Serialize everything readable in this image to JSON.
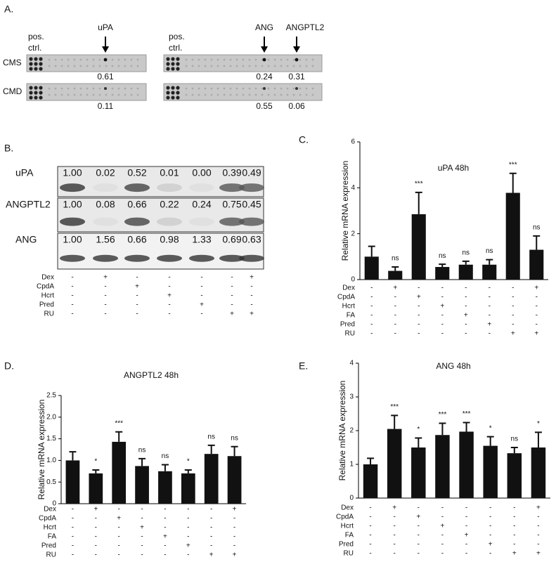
{
  "panel_a": {
    "label": "A.",
    "rows": [
      "CMS",
      "CMD"
    ],
    "controls": [
      [
        "pos.",
        "ctrl."
      ],
      [
        "pos.",
        "ctrl."
      ]
    ],
    "markers": [
      {
        "label": "uPA",
        "values": [
          "0.61",
          "0.11"
        ]
      },
      {
        "label": "ANG",
        "values": [
          "0.24",
          "0.55"
        ]
      },
      {
        "label": "ANGPTL2",
        "values": [
          "0.31",
          "0.06"
        ]
      }
    ]
  },
  "panel_b": {
    "label": "B.",
    "blots": [
      {
        "label": "uPA",
        "values": [
          "1.00",
          "0.02",
          "0.52",
          "0.01",
          "0.00",
          "0.39",
          "0.49"
        ]
      },
      {
        "label": "ANGPTL2",
        "values": [
          "1.00",
          "0.08",
          "0.66",
          "0.22",
          "0.24",
          "0.75",
          "0.45"
        ]
      },
      {
        "label": "ANG",
        "values": [
          "1.00",
          "1.56",
          "0.66",
          "0.98",
          "1.33",
          "0.69",
          "0.63"
        ]
      }
    ],
    "treatments": [
      {
        "label": "Dex",
        "signs": [
          "-",
          "+",
          "-",
          "-",
          "-",
          "-",
          "+"
        ]
      },
      {
        "label": "CpdA",
        "signs": [
          "-",
          "-",
          "+",
          "-",
          "-",
          "-",
          "-"
        ]
      },
      {
        "label": "Hcrt",
        "signs": [
          "-",
          "-",
          "-",
          "+",
          "-",
          "-",
          "-"
        ]
      },
      {
        "label": "Pred",
        "signs": [
          "-",
          "-",
          "-",
          "-",
          "+",
          "-",
          "-"
        ]
      },
      {
        "label": "RU",
        "signs": [
          "-",
          "-",
          "-",
          "-",
          "-",
          "+",
          "+"
        ]
      }
    ]
  },
  "chart_data": [
    {
      "type": "bar",
      "panel": "C.",
      "title": "uPA 48h",
      "ylabel": "Relative mRNA expression",
      "ylim": [
        0,
        6
      ],
      "yticks": [
        0,
        2,
        4,
        6
      ],
      "color": "#111111",
      "values": [
        1.0,
        0.38,
        2.85,
        0.55,
        0.65,
        0.65,
        3.78,
        1.3
      ],
      "errors": [
        0.45,
        0.17,
        0.95,
        0.12,
        0.15,
        0.22,
        0.85,
        0.6
      ],
      "annotations": [
        null,
        "ns",
        "***",
        "ns",
        "ns",
        "ns",
        "***",
        "ns"
      ],
      "treatments": [
        {
          "label": "Dex",
          "signs": [
            "-",
            "+",
            "-",
            "-",
            "-",
            "-",
            "-",
            "+"
          ]
        },
        {
          "label": "CpdA",
          "signs": [
            "-",
            "-",
            "+",
            "-",
            "-",
            "-",
            "-",
            "-"
          ]
        },
        {
          "label": "Hcrt",
          "signs": [
            "-",
            "-",
            "-",
            "+",
            "-",
            "-",
            "-",
            "-"
          ]
        },
        {
          "label": "FA",
          "signs": [
            "-",
            "-",
            "-",
            "-",
            "+",
            "-",
            "-",
            "-"
          ]
        },
        {
          "label": "Pred",
          "signs": [
            "-",
            "-",
            "-",
            "-",
            "-",
            "+",
            "-",
            "-"
          ]
        },
        {
          "label": "RU",
          "signs": [
            "-",
            "-",
            "-",
            "-",
            "-",
            "-",
            "+",
            "+"
          ]
        }
      ]
    },
    {
      "type": "bar",
      "panel": "D.",
      "title": "ANGPTL2 48h",
      "ylabel": "Relative mRNA expression",
      "ylim": [
        0,
        2.5
      ],
      "yticks": [
        0,
        0.5,
        {
          "value": 1,
          "label": "1.0"
        },
        1.5,
        {
          "value": 2,
          "label": "2.0"
        },
        2.5
      ],
      "color": "#111111",
      "values": [
        1.0,
        0.7,
        1.43,
        0.87,
        0.75,
        0.7,
        1.15,
        1.1
      ],
      "errors": [
        0.2,
        0.08,
        0.23,
        0.17,
        0.15,
        0.08,
        0.2,
        0.22
      ],
      "annotations": [
        null,
        "*",
        "***",
        "ns",
        "ns",
        "*",
        "ns",
        "ns"
      ],
      "treatments": [
        {
          "label": "Dex",
          "signs": [
            "-",
            "+",
            "-",
            "-",
            "-",
            "-",
            "-",
            "+"
          ]
        },
        {
          "label": "CpdA",
          "signs": [
            "-",
            "-",
            "+",
            "-",
            "-",
            "-",
            "-",
            "-"
          ]
        },
        {
          "label": "Hcrt",
          "signs": [
            "-",
            "-",
            "-",
            "+",
            "-",
            "-",
            "-",
            "-"
          ]
        },
        {
          "label": "FA",
          "signs": [
            "-",
            "-",
            "-",
            "-",
            "+",
            "-",
            "-",
            "-"
          ]
        },
        {
          "label": "Pred",
          "signs": [
            "-",
            "-",
            "-",
            "-",
            "-",
            "+",
            "-",
            "-"
          ]
        },
        {
          "label": "RU",
          "signs": [
            "-",
            "-",
            "-",
            "-",
            "-",
            "-",
            "+",
            "+"
          ]
        }
      ]
    },
    {
      "type": "bar",
      "panel": "E.",
      "title": "ANG 48h",
      "ylabel": "Relative mRNA expression",
      "ylim": [
        0,
        4
      ],
      "yticks": [
        0,
        1,
        2,
        3,
        4
      ],
      "color": "#111111",
      "values": [
        1.0,
        2.05,
        1.5,
        1.87,
        1.97,
        1.55,
        1.33,
        1.5
      ],
      "errors": [
        0.18,
        0.4,
        0.28,
        0.35,
        0.27,
        0.27,
        0.17,
        0.45
      ],
      "annotations": [
        null,
        "***",
        "*",
        "***",
        "***",
        "*",
        "ns",
        "*"
      ],
      "treatments": [
        {
          "label": "Dex",
          "signs": [
            "-",
            "+",
            "-",
            "-",
            "-",
            "-",
            "-",
            "+"
          ]
        },
        {
          "label": "CpdA",
          "signs": [
            "-",
            "-",
            "+",
            "-",
            "-",
            "-",
            "-",
            "-"
          ]
        },
        {
          "label": "Hcrt",
          "signs": [
            "-",
            "-",
            "-",
            "+",
            "-",
            "-",
            "-",
            "-"
          ]
        },
        {
          "label": "FA",
          "signs": [
            "-",
            "-",
            "-",
            "-",
            "+",
            "-",
            "-",
            "-"
          ]
        },
        {
          "label": "Pred",
          "signs": [
            "-",
            "-",
            "-",
            "-",
            "-",
            "+",
            "-",
            "-"
          ]
        },
        {
          "label": "RU",
          "signs": [
            "-",
            "-",
            "-",
            "-",
            "-",
            "-",
            "+",
            "+"
          ]
        }
      ]
    }
  ]
}
